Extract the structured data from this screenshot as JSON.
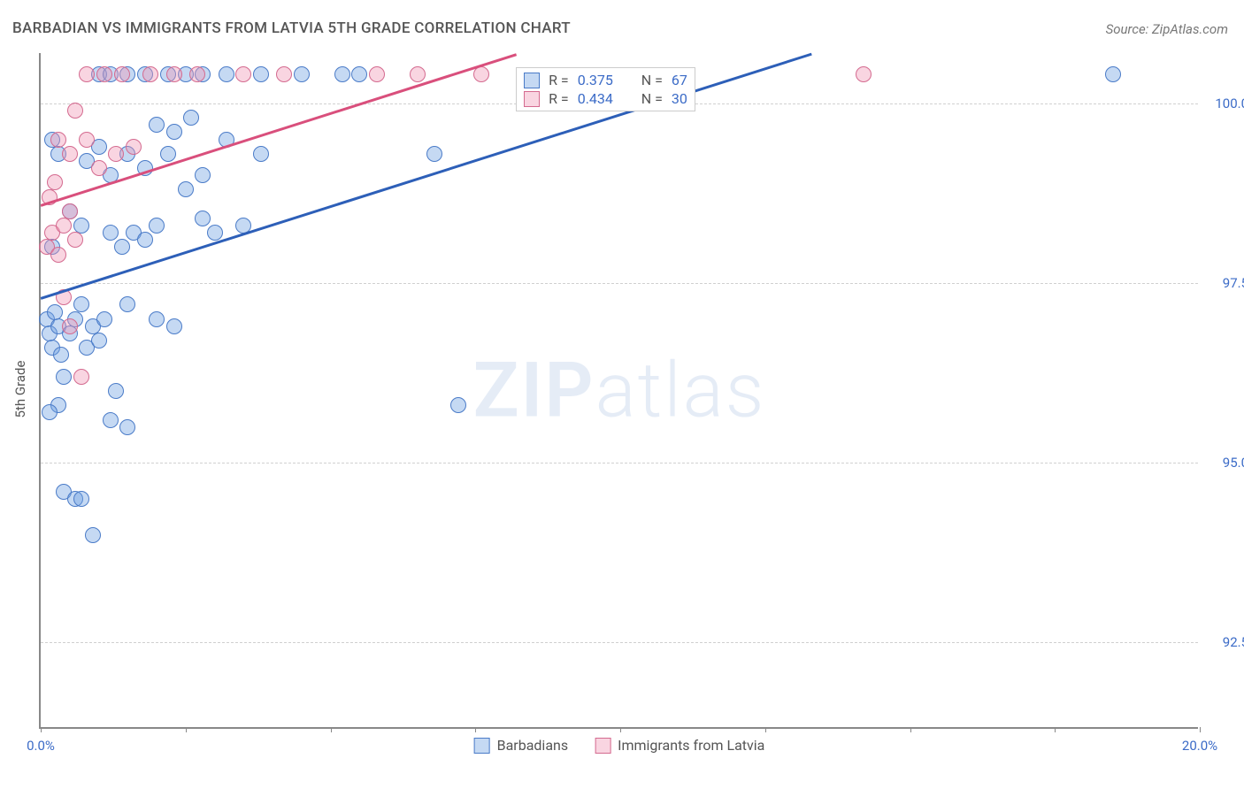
{
  "title": "BARBADIAN VS IMMIGRANTS FROM LATVIA 5TH GRADE CORRELATION CHART",
  "source_label": "Source: ZipAtlas.com",
  "y_axis_label": "5th Grade",
  "watermark_bold": "ZIP",
  "watermark_light": "atlas",
  "chart": {
    "type": "scatter",
    "xlim": [
      0,
      20
    ],
    "ylim": [
      91.3,
      100.7
    ],
    "x_ticks": [
      0,
      2.5,
      5,
      7.5,
      10,
      12.5,
      15,
      17.5,
      20
    ],
    "x_tick_labels": {
      "0": "0.0%",
      "20": "20.0%"
    },
    "y_gridlines": [
      92.5,
      95.0,
      97.5,
      100.0
    ],
    "y_tick_labels": [
      "92.5%",
      "95.0%",
      "97.5%",
      "100.0%"
    ],
    "background_color": "#ffffff",
    "grid_color": "#d0d0d0",
    "axis_color": "#888888",
    "marker_radius": 9,
    "marker_stroke_width": 1.5,
    "series": [
      {
        "name": "Barbadians",
        "fill": "rgba(110,160,225,0.4)",
        "stroke": "#4a7bc8",
        "r_value": "0.375",
        "n_value": "67",
        "trend": {
          "x1": 0,
          "y1": 97.3,
          "x2": 13.3,
          "y2": 100.7,
          "color": "#2d5fb8"
        },
        "points": [
          [
            0.1,
            97.0
          ],
          [
            0.15,
            96.8
          ],
          [
            0.2,
            96.6
          ],
          [
            0.25,
            97.1
          ],
          [
            0.3,
            96.9
          ],
          [
            0.35,
            96.5
          ],
          [
            0.2,
            98.0
          ],
          [
            0.4,
            96.2
          ],
          [
            0.5,
            96.8
          ],
          [
            0.6,
            97.0
          ],
          [
            0.7,
            97.2
          ],
          [
            0.3,
            95.8
          ],
          [
            0.8,
            96.6
          ],
          [
            0.9,
            96.9
          ],
          [
            1.0,
            96.7
          ],
          [
            1.1,
            97.0
          ],
          [
            0.4,
            94.6
          ],
          [
            0.6,
            94.5
          ],
          [
            0.7,
            94.5
          ],
          [
            0.9,
            94.0
          ],
          [
            0.15,
            95.7
          ],
          [
            1.2,
            95.6
          ],
          [
            1.3,
            96.0
          ],
          [
            1.5,
            95.5
          ],
          [
            1.2,
            98.2
          ],
          [
            1.4,
            98.0
          ],
          [
            1.6,
            98.2
          ],
          [
            1.8,
            98.1
          ],
          [
            2.0,
            98.3
          ],
          [
            1.0,
            100.4
          ],
          [
            1.2,
            100.4
          ],
          [
            1.5,
            100.4
          ],
          [
            1.8,
            100.4
          ],
          [
            2.2,
            100.4
          ],
          [
            2.5,
            100.4
          ],
          [
            2.8,
            100.4
          ],
          [
            3.2,
            100.4
          ],
          [
            3.8,
            100.4
          ],
          [
            4.5,
            100.4
          ],
          [
            5.2,
            100.4
          ],
          [
            5.5,
            100.4
          ],
          [
            18.5,
            100.4
          ],
          [
            0.8,
            99.2
          ],
          [
            1.0,
            99.4
          ],
          [
            1.2,
            99.0
          ],
          [
            1.5,
            99.3
          ],
          [
            1.8,
            99.1
          ],
          [
            2.2,
            99.3
          ],
          [
            2.5,
            98.8
          ],
          [
            2.8,
            99.0
          ],
          [
            1.5,
            97.2
          ],
          [
            2.0,
            97.0
          ],
          [
            2.3,
            96.9
          ],
          [
            2.8,
            98.4
          ],
          [
            3.0,
            98.2
          ],
          [
            3.5,
            98.3
          ],
          [
            2.0,
            99.7
          ],
          [
            2.3,
            99.6
          ],
          [
            2.6,
            99.8
          ],
          [
            3.2,
            99.5
          ],
          [
            3.8,
            99.3
          ],
          [
            6.8,
            99.3
          ],
          [
            7.2,
            95.8
          ],
          [
            0.5,
            98.5
          ],
          [
            0.7,
            98.3
          ],
          [
            0.2,
            99.5
          ],
          [
            0.3,
            99.3
          ]
        ]
      },
      {
        "name": "Immigrants from Latvia",
        "fill": "rgba(240,150,180,0.4)",
        "stroke": "#d46a8f",
        "r_value": "0.434",
        "n_value": "30",
        "trend": {
          "x1": 0,
          "y1": 98.6,
          "x2": 8.2,
          "y2": 100.7,
          "color": "#d94f7c"
        },
        "points": [
          [
            0.1,
            98.0
          ],
          [
            0.2,
            98.2
          ],
          [
            0.3,
            97.9
          ],
          [
            0.4,
            98.3
          ],
          [
            0.15,
            98.7
          ],
          [
            0.25,
            98.9
          ],
          [
            0.5,
            98.5
          ],
          [
            0.6,
            98.1
          ],
          [
            0.4,
            97.3
          ],
          [
            0.5,
            96.9
          ],
          [
            0.7,
            96.2
          ],
          [
            0.3,
            99.5
          ],
          [
            0.5,
            99.3
          ],
          [
            0.8,
            99.5
          ],
          [
            1.0,
            99.1
          ],
          [
            1.3,
            99.3
          ],
          [
            1.6,
            99.4
          ],
          [
            0.6,
            99.9
          ],
          [
            0.8,
            100.4
          ],
          [
            1.1,
            100.4
          ],
          [
            1.4,
            100.4
          ],
          [
            1.9,
            100.4
          ],
          [
            2.3,
            100.4
          ],
          [
            2.7,
            100.4
          ],
          [
            3.5,
            100.4
          ],
          [
            4.2,
            100.4
          ],
          [
            5.8,
            100.4
          ],
          [
            6.5,
            100.4
          ],
          [
            7.6,
            100.4
          ],
          [
            14.2,
            100.4
          ]
        ]
      }
    ]
  },
  "legend_top": {
    "r_label": "R =",
    "n_label": "N ="
  },
  "colors": {
    "text_blue": "#3b6bc7",
    "text_gray": "#555555"
  }
}
